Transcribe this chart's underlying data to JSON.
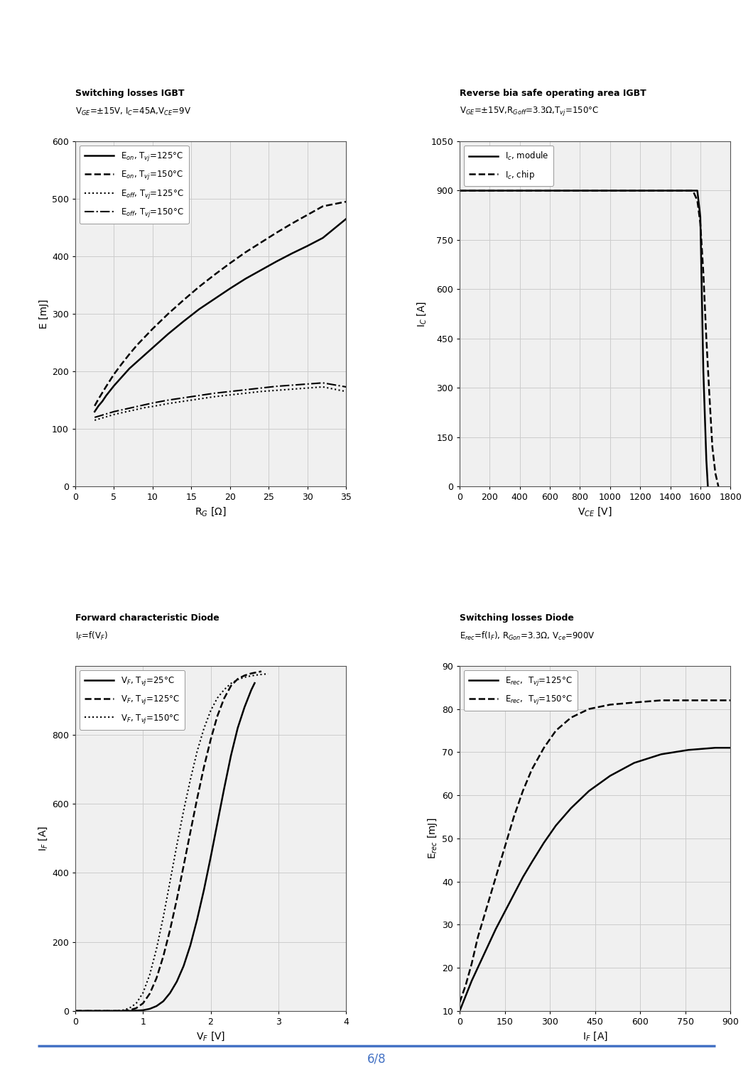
{
  "fig_width": 10.6,
  "fig_height": 15.31,
  "background_color": "#ffffff",
  "plot_bg_color": "#f0f0f0",
  "grid_color": "#cccccc",
  "plot1": {
    "title_line1": "Switching losses IGBT",
    "title_line2": "V$_{GE}$=±15V, I$_C$=45A,V$_{CE}$=9V",
    "xlabel": "R$_G$ [Ω]",
    "ylabel": "E [mJ]",
    "xlim": [
      0,
      35
    ],
    "ylim": [
      0,
      600
    ],
    "xticks": [
      0,
      5,
      10,
      15,
      20,
      25,
      30,
      35
    ],
    "yticks": [
      0,
      100,
      200,
      300,
      400,
      500,
      600
    ],
    "curves": [
      {
        "label": "E$_{on}$, T$_{vj}$=125°C",
        "style": "solid",
        "color": "#000000",
        "x": [
          2.5,
          3,
          3.5,
          4,
          5,
          6,
          7,
          8,
          9,
          10,
          12,
          14,
          16,
          18,
          20,
          22,
          24,
          26,
          28,
          30,
          32,
          35
        ],
        "y": [
          130,
          140,
          148,
          158,
          175,
          190,
          205,
          217,
          229,
          241,
          265,
          287,
          308,
          326,
          344,
          361,
          376,
          391,
          405,
          418,
          432,
          465
        ]
      },
      {
        "label": "E$_{on}$, T$_{vj}$=150°C",
        "style": "dashed",
        "color": "#000000",
        "x": [
          2.5,
          3,
          3.5,
          4,
          5,
          6,
          7,
          8,
          9,
          10,
          12,
          14,
          16,
          18,
          20,
          22,
          24,
          26,
          28,
          30,
          32,
          35
        ],
        "y": [
          140,
          152,
          163,
          174,
          195,
          213,
          230,
          246,
          260,
          274,
          300,
          324,
          347,
          368,
          388,
          407,
          424,
          441,
          457,
          472,
          487,
          495
        ]
      },
      {
        "label": "E$_{off}$, T$_{vj}$=125°C",
        "style": "dotted",
        "color": "#000000",
        "x": [
          2.5,
          3,
          4,
          5,
          6,
          7,
          8,
          9,
          10,
          12,
          14,
          16,
          18,
          20,
          22,
          24,
          26,
          28,
          30,
          32,
          35
        ],
        "y": [
          115,
          117,
          121,
          125,
          128,
          131,
          134,
          137,
          139,
          144,
          148,
          152,
          156,
          159,
          162,
          165,
          167,
          169,
          171,
          173,
          165
        ]
      },
      {
        "label": "E$_{off}$, T$_{vj}$=150°C",
        "style": "dashdot",
        "color": "#000000",
        "x": [
          2.5,
          3,
          4,
          5,
          6,
          7,
          8,
          9,
          10,
          12,
          14,
          16,
          18,
          20,
          22,
          24,
          26,
          28,
          30,
          32,
          35
        ],
        "y": [
          120,
          122,
          126,
          130,
          133,
          136,
          139,
          142,
          145,
          150,
          154,
          158,
          162,
          165,
          168,
          171,
          174,
          176,
          178,
          180,
          173
        ]
      }
    ]
  },
  "plot2": {
    "title_line1": "Reverse bia safe operating area IGBT",
    "title_line2": "V$_{GE}$=±15V,R$_{Goff}$=3.3Ω,T$_{vj}$=150°C",
    "xlabel": "V$_{CE}$ [V]",
    "ylabel": "I$_C$ [A]",
    "xlim": [
      0,
      1800
    ],
    "ylim": [
      0,
      1050
    ],
    "xticks": [
      0,
      200,
      400,
      600,
      800,
      1000,
      1200,
      1400,
      1600,
      1800
    ],
    "yticks": [
      0,
      150,
      300,
      450,
      600,
      750,
      900,
      1050
    ],
    "curves": [
      {
        "label": "I$_c$, module",
        "style": "solid",
        "color": "#000000",
        "x": [
          0,
          200,
          400,
          600,
          800,
          1000,
          1200,
          1400,
          1580,
          1600,
          1620,
          1640,
          1650
        ],
        "y": [
          900,
          900,
          900,
          900,
          900,
          900,
          900,
          900,
          900,
          820,
          350,
          80,
          0
        ]
      },
      {
        "label": "I$_c$, chip",
        "style": "dashed",
        "color": "#000000",
        "x": [
          0,
          200,
          400,
          600,
          800,
          1000,
          1200,
          1400,
          1550,
          1580,
          1600,
          1620,
          1640,
          1660,
          1680,
          1700,
          1720
        ],
        "y": [
          900,
          900,
          900,
          900,
          900,
          900,
          900,
          900,
          900,
          870,
          800,
          650,
          450,
          280,
          120,
          40,
          0
        ]
      }
    ]
  },
  "plot3": {
    "title_line1": "Forward characteristic Diode",
    "title_line2": "I$_F$=f(V$_F$)",
    "xlabel": "V$_F$ [V]",
    "ylabel": "I$_F$ [A]",
    "xlim": [
      0,
      4
    ],
    "ylim": [
      0,
      1000
    ],
    "xticks": [
      0,
      1,
      2,
      3,
      4
    ],
    "yticks": [
      0,
      200,
      400,
      600,
      800
    ],
    "curves": [
      {
        "label": "V$_F$, T$_{vj}$=25°C",
        "style": "solid",
        "color": "#000000",
        "x": [
          0,
          0.8,
          1.0,
          1.1,
          1.2,
          1.3,
          1.4,
          1.5,
          1.6,
          1.7,
          1.8,
          1.9,
          2.0,
          2.1,
          2.2,
          2.3,
          2.4,
          2.5,
          2.6,
          2.65
        ],
        "y": [
          0,
          0,
          2,
          6,
          14,
          28,
          52,
          85,
          130,
          190,
          265,
          350,
          445,
          545,
          645,
          740,
          820,
          880,
          930,
          950
        ]
      },
      {
        "label": "V$_F$, T$_{vj}$=125°C",
        "style": "dashed",
        "color": "#000000",
        "x": [
          0,
          0.7,
          0.8,
          0.9,
          1.0,
          1.1,
          1.2,
          1.3,
          1.4,
          1.5,
          1.6,
          1.7,
          1.8,
          1.9,
          2.0,
          2.1,
          2.2,
          2.3,
          2.4,
          2.5,
          2.6,
          2.7,
          2.75
        ],
        "y": [
          0,
          0,
          2,
          8,
          22,
          50,
          95,
          158,
          235,
          323,
          420,
          518,
          615,
          706,
          786,
          855,
          906,
          942,
          962,
          972,
          978,
          982,
          984
        ]
      },
      {
        "label": "V$_F$, T$_{vj}$=150°C",
        "style": "dotted",
        "color": "#000000",
        "x": [
          0,
          0.6,
          0.7,
          0.8,
          0.9,
          1.0,
          1.1,
          1.2,
          1.3,
          1.4,
          1.5,
          1.6,
          1.7,
          1.8,
          1.9,
          2.0,
          2.1,
          2.2,
          2.3,
          2.4,
          2.5,
          2.6,
          2.7,
          2.8,
          2.85
        ],
        "y": [
          0,
          0,
          2,
          8,
          22,
          52,
          105,
          180,
          272,
          375,
          480,
          580,
          670,
          752,
          818,
          870,
          907,
          931,
          949,
          960,
          967,
          971,
          974,
          976,
          977
        ]
      }
    ]
  },
  "plot4": {
    "title_line1": "Switching losses Diode",
    "title_line2": "E$_{rec}$=f(I$_F$), R$_{Gon}$=3.3Ω, V$_{ce}$=900V",
    "xlabel": "I$_F$ [A]",
    "ylabel": "E$_{rec}$ [mJ]",
    "xlim": [
      0,
      900
    ],
    "ylim": [
      10,
      90
    ],
    "xticks": [
      0,
      150,
      300,
      450,
      600,
      750,
      900
    ],
    "yticks": [
      10,
      20,
      30,
      40,
      50,
      60,
      70,
      80,
      90
    ],
    "curves": [
      {
        "label": "E$_{rec}$,  T$_{vj}$=125°C",
        "style": "solid",
        "color": "#000000",
        "x": [
          0,
          20,
          40,
          60,
          90,
          120,
          150,
          180,
          210,
          240,
          280,
          320,
          370,
          430,
          500,
          580,
          670,
          760,
          850,
          900
        ],
        "y": [
          10,
          13.5,
          17,
          20,
          24.5,
          29,
          33,
          37,
          41,
          44.5,
          49,
          53,
          57,
          61,
          64.5,
          67.5,
          69.5,
          70.5,
          71,
          71
        ]
      },
      {
        "label": "E$_{rec}$,  T$_{vj}$=150°C",
        "style": "dashed",
        "color": "#000000",
        "x": [
          0,
          20,
          40,
          60,
          90,
          120,
          150,
          180,
          210,
          240,
          280,
          320,
          370,
          430,
          500,
          580,
          670,
          760,
          850,
          900
        ],
        "y": [
          12,
          16,
          21,
          27,
          34,
          41,
          48,
          55,
          61,
          66,
          71,
          75,
          78,
          80,
          81,
          81.5,
          82,
          82,
          82,
          82
        ]
      }
    ]
  }
}
